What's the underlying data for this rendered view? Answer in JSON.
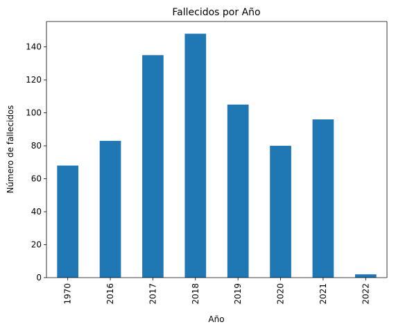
{
  "chart_data": {
    "type": "bar",
    "title": "Fallecidos por Año",
    "xlabel": "Año",
    "ylabel": "Número de fallecidos",
    "categories": [
      "1970",
      "2016",
      "2017",
      "2018",
      "2019",
      "2020",
      "2021",
      "2022"
    ],
    "values": [
      68,
      83,
      135,
      148,
      105,
      80,
      96,
      2
    ],
    "ylim": [
      0,
      155.4
    ],
    "yticks": [
      "0",
      "20",
      "40",
      "60",
      "80",
      "100",
      "120",
      "140"
    ],
    "grid": false,
    "legend": "none",
    "bar_color": "#1f77b4"
  }
}
